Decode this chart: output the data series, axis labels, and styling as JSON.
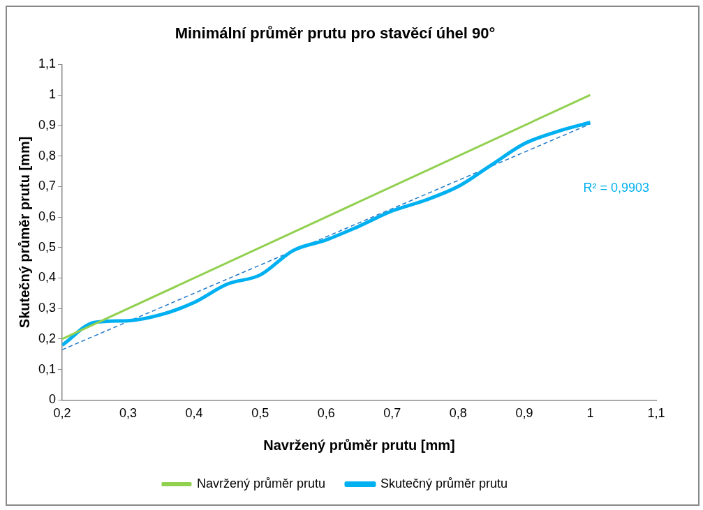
{
  "chart_data": {
    "type": "line",
    "title": "Minimální průměr prutu pro stavěcí úhel 90°",
    "xlabel": "Navržený průměr prutu [mm]",
    "ylabel": "Skutečný průměr prutu [mm]",
    "series": [
      {
        "name": "Navržený průměr prutu",
        "color": "#92d050",
        "x": [
          0.2,
          1.0
        ],
        "values": [
          0.2,
          1.0
        ]
      },
      {
        "name": "Skutečný průměr prutu",
        "color": "#00b0f0",
        "x": [
          0.2,
          0.25,
          0.3,
          0.35,
          0.4,
          0.45,
          0.5,
          0.55,
          0.6,
          0.65,
          0.7,
          0.75,
          0.8,
          0.85,
          0.9,
          0.95,
          1.0
        ],
        "values": [
          0.18,
          0.255,
          0.26,
          0.28,
          0.32,
          0.38,
          0.41,
          0.49,
          0.525,
          0.57,
          0.62,
          0.655,
          0.7,
          0.77,
          0.84,
          0.88,
          0.91
        ]
      },
      {
        "type": "line",
        "line_style": "dashed",
        "color": "#1f78c8",
        "x": [
          0.2,
          1.0
        ],
        "values": [
          0.165,
          0.905
        ]
      }
    ],
    "annotations": [
      "R² = 0,9903"
    ],
    "xlim": [
      0.2,
      1.1
    ],
    "xticks": [
      {
        "value": 0.2,
        "label": "0,2"
      },
      {
        "value": 0.3,
        "label": "0,3"
      },
      {
        "value": 0.4,
        "label": "0,4"
      },
      {
        "value": 0.5,
        "label": "0,5"
      },
      {
        "value": 0.6,
        "label": "0,6"
      },
      {
        "value": 0.7,
        "label": "0,7"
      },
      {
        "value": 0.8,
        "label": "0,8"
      },
      {
        "value": 0.9,
        "label": "0,9"
      },
      {
        "value": 1,
        "label": "1"
      },
      {
        "value": 1.1,
        "label": "1,1"
      }
    ],
    "ylim": [
      0,
      1.1
    ],
    "yticks": [
      0,
      {
        "value": 0.1,
        "label": "0,1"
      },
      {
        "value": 0.2,
        "label": "0,2"
      },
      {
        "value": 0.3,
        "label": "0,3"
      },
      {
        "value": 0.4,
        "label": "0,4"
      },
      {
        "value": 0.5,
        "label": "0,5"
      },
      {
        "value": 0.6,
        "label": "0,6"
      },
      {
        "value": 0.7,
        "label": "0,7"
      },
      {
        "value": 0.8,
        "label": "0,8"
      },
      {
        "value": 0.9,
        "label": "0,9"
      },
      1,
      {
        "value": 1.1,
        "label": "1,1"
      }
    ],
    "grid": false,
    "legend": "bottom",
    "marker": "none"
  }
}
